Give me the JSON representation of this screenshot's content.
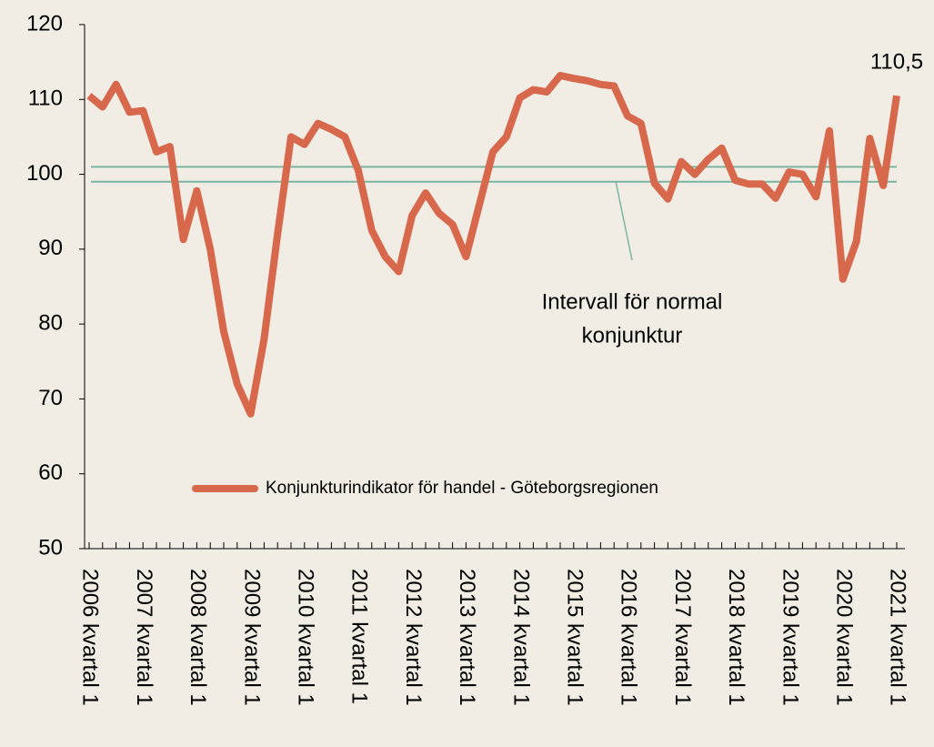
{
  "chart_data": {
    "type": "line",
    "categories": [
      "2006 kvartal 1",
      null,
      null,
      null,
      "2007 kvartal 1",
      null,
      null,
      null,
      "2008 kvartal 1",
      null,
      null,
      null,
      "2009 kvartal 1",
      null,
      null,
      null,
      "2010 kvartal 1",
      null,
      null,
      null,
      "2011 kvartal 1",
      null,
      null,
      null,
      "2012 kvartal 1",
      null,
      null,
      null,
      "2013 kvartal 1",
      null,
      null,
      null,
      "2014 kvartal 1",
      null,
      null,
      null,
      "2015 kvartal 1",
      null,
      null,
      null,
      "2016 kvartal 1",
      null,
      null,
      null,
      "2017 kvartal 1",
      null,
      null,
      null,
      "2018 kvartal 1",
      null,
      null,
      null,
      "2019 kvartal 1",
      null,
      null,
      null,
      "2020 kvartal 1",
      null,
      null,
      null,
      "2021 kvartal 1"
    ],
    "series": [
      {
        "name": "Konjunkturindikator för handel - Göteborgsregionen",
        "color": "#d8684b",
        "values": [
          110.5,
          109,
          112,
          108.3,
          108.5,
          103,
          103.7,
          91.3,
          97.8,
          90,
          79,
          72,
          68,
          78,
          92,
          105,
          104,
          106.8,
          106,
          105,
          100.5,
          92.5,
          89,
          87,
          94.5,
          97.5,
          94.8,
          93.3,
          89,
          96,
          103,
          105,
          110.2,
          111.3,
          111,
          113.2,
          112.8,
          112.5,
          112,
          111.8,
          107.8,
          106.8,
          98.8,
          96.7,
          101.7,
          100,
          102,
          103.5,
          99.2,
          98.7,
          98.7,
          96.8,
          100.3,
          100,
          97,
          105.8,
          86,
          91,
          104.8,
          98.5,
          110.5
        ],
        "value_labels": [
          null,
          null,
          null,
          null,
          null,
          null,
          null,
          null,
          null,
          null,
          null,
          null,
          null,
          null,
          null,
          null,
          null,
          null,
          null,
          null,
          null,
          null,
          null,
          null,
          null,
          null,
          null,
          null,
          null,
          null,
          null,
          null,
          null,
          null,
          null,
          null,
          null,
          null,
          null,
          null,
          null,
          null,
          null,
          null,
          null,
          null,
          null,
          null,
          null,
          null,
          null,
          null,
          null,
          null,
          null,
          null,
          null,
          null,
          null,
          null,
          "110,5"
        ]
      }
    ],
    "reference_lines": [
      {
        "value": 101,
        "color": "#7bb5a0"
      },
      {
        "value": 99,
        "color": "#7bb5a0"
      }
    ],
    "annotation": [
      "Intervall för normal",
      "konjunktur"
    ],
    "ylim": [
      50,
      120
    ],
    "yticks": [
      50,
      60,
      70,
      80,
      90,
      100,
      110,
      120
    ],
    "legend": "bottom-center"
  }
}
